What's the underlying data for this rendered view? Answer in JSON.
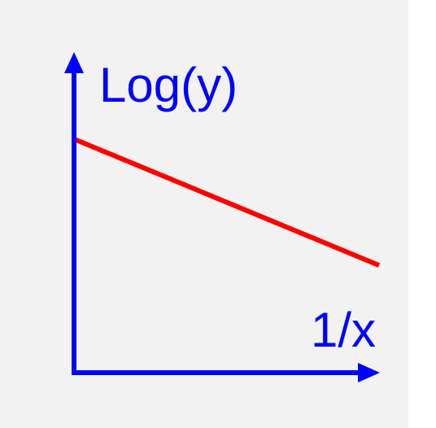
{
  "colors": {
    "panel": "#f2f2f2",
    "axis": "#0000ff",
    "line": "#ff0000",
    "label": "#0000ff"
  },
  "chart_data": {
    "type": "line",
    "title": "",
    "xlabel": "1/x",
    "ylabel": "Log(y)",
    "grid": false,
    "legend": "none",
    "axes_style": "arrows-no-ticks",
    "xlim": [
      0,
      1
    ],
    "ylim": [
      0,
      1
    ],
    "series": [
      {
        "x": [
          0,
          1
        ],
        "y": [
          0.74,
          0.34
        ]
      }
    ]
  }
}
